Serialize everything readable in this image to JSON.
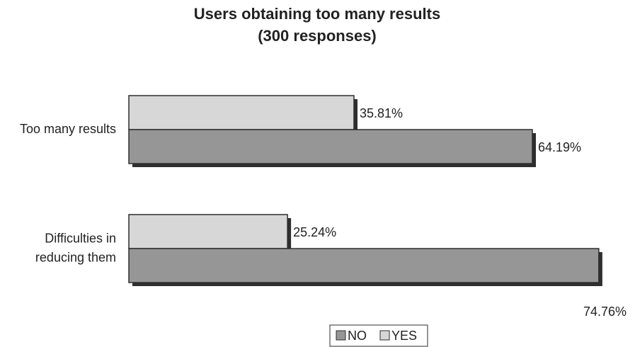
{
  "chart_data": {
    "type": "bar",
    "orientation": "horizontal",
    "title": "Users obtaining too many results",
    "subtitle": "(300 responses)",
    "categories": [
      [
        "Too many results"
      ],
      [
        "Difficulties in",
        "reducing them"
      ]
    ],
    "series": [
      {
        "name": "YES",
        "color": "#d7d7d7",
        "values": [
          35.81,
          25.24
        ],
        "labels": [
          "35.81%",
          "25.24%"
        ]
      },
      {
        "name": "NO",
        "color": "#969696",
        "values": [
          64.19,
          74.76
        ],
        "labels": [
          "64.19%",
          "74.76%"
        ]
      }
    ],
    "xlim": [
      0,
      75
    ],
    "legend": {
      "position": "bottom-center",
      "order": [
        "NO",
        "YES"
      ]
    },
    "grid": false
  }
}
